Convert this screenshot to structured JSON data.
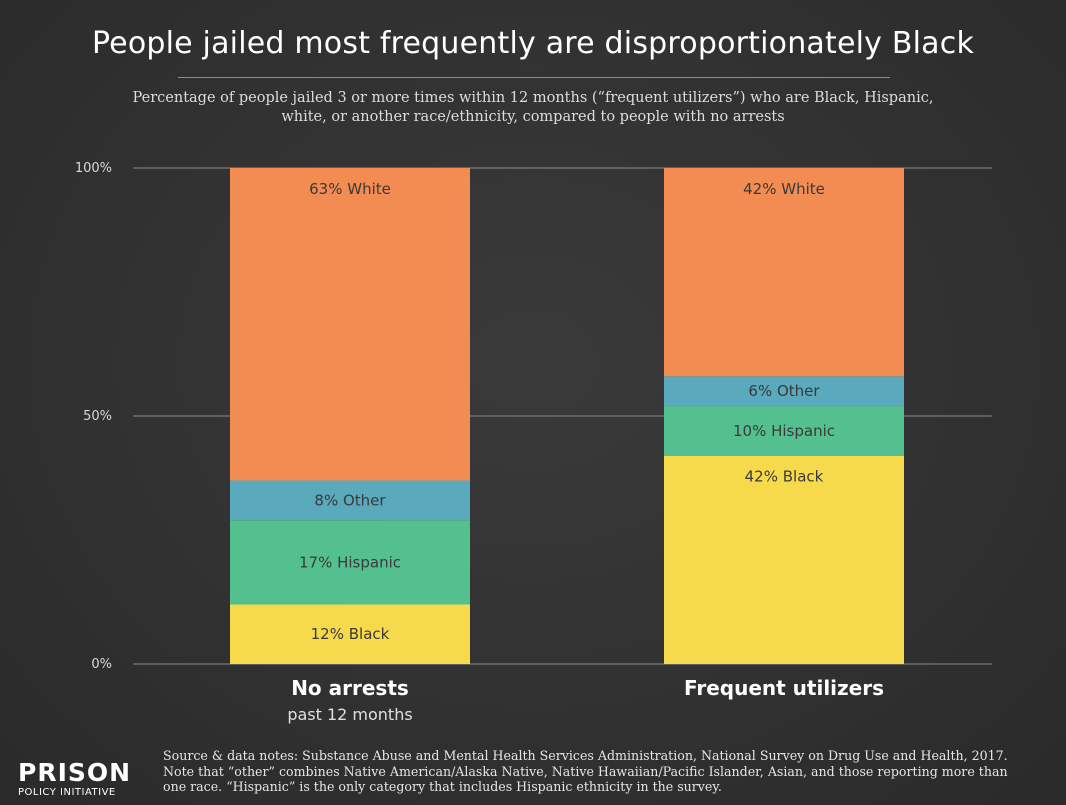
{
  "header": {
    "title": "People jailed most frequently are disproportionately Black",
    "subtitle": "Percentage of people jailed 3 or more times within 12 months (“frequent utilizers”) who are Black, Hispanic, white, or another race/ethnicity, compared to people with no arrests"
  },
  "chart_data": {
    "type": "bar",
    "stacked": true,
    "categories": [
      "No arrests",
      "Frequent utilizers"
    ],
    "category_sublabels": [
      "past 12 months",
      ""
    ],
    "series": [
      {
        "name": "Black",
        "values": [
          12,
          42
        ],
        "color": "#f7d94c",
        "labels": [
          "12% Black",
          "42% Black"
        ]
      },
      {
        "name": "Hispanic",
        "values": [
          17,
          10
        ],
        "color": "#55c08f",
        "labels": [
          "17% Hispanic",
          "10% Hispanic"
        ]
      },
      {
        "name": "Other",
        "values": [
          8,
          6
        ],
        "color": "#5aa9bc",
        "labels": [
          "8% Other",
          "6% Other"
        ]
      },
      {
        "name": "White",
        "values": [
          63,
          42
        ],
        "color": "#f28c52",
        "labels": [
          "63% White",
          "42% White"
        ]
      }
    ],
    "ylim": [
      0,
      100
    ],
    "yticks": [
      0,
      50,
      100
    ],
    "ytick_labels": [
      "0%",
      "50%",
      "100%"
    ],
    "grid": true,
    "legend": "none"
  },
  "footer": {
    "source": "Source & data notes: Substance Abuse and Mental Health Services Administration, National Survey on Drug Use and Health, 2017. Note that “other” combines Native American/Alaska Native, Native Hawaiian/Pacific Islander, Asian, and those reporting more than one race. “Hispanic” is the only category that includes Hispanic ethnicity in the survey.",
    "logo_main": "PRISON",
    "logo_sub": "POLICY INITIATIVE"
  }
}
